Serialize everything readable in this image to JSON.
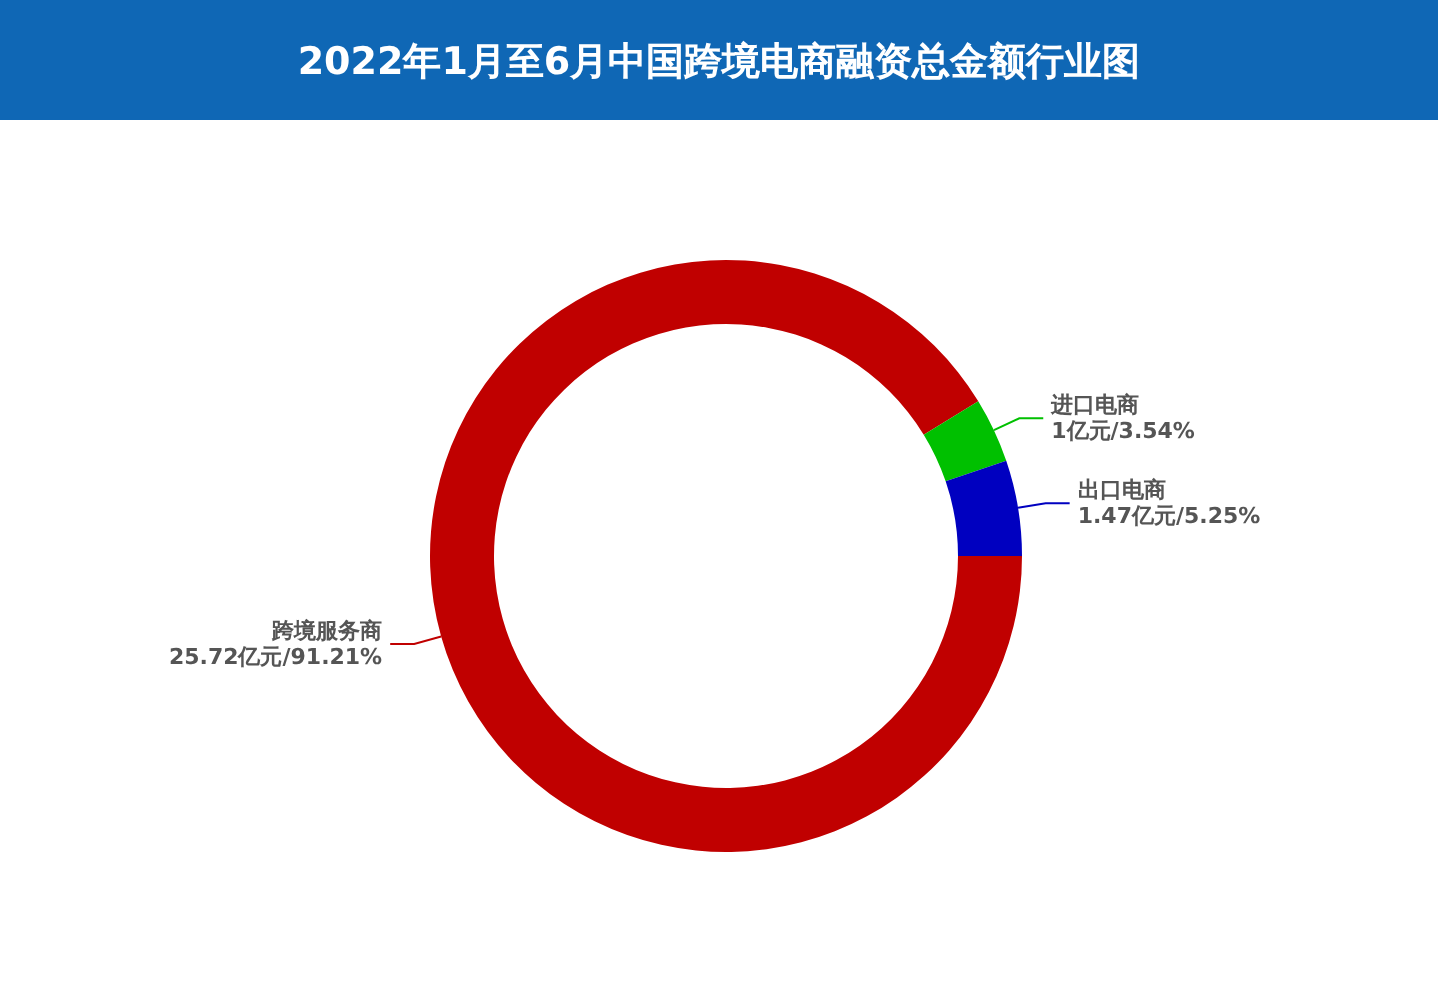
{
  "chart_data": {
    "type": "donut",
    "title": "2022年1月至6月中国跨境电商融资总金额行业图",
    "categories": [
      "跨境服务商",
      "进口电商",
      "出口电商"
    ],
    "values": [
      25.72,
      1,
      1.47
    ],
    "colors": [
      "#c00000",
      "#00c000",
      "#0000c0"
    ],
    "value_labels": [
      "25.72亿元/91.21%",
      "1亿元/3.54%",
      "1.47亿元/5.25%"
    ],
    "legend": false
  }
}
